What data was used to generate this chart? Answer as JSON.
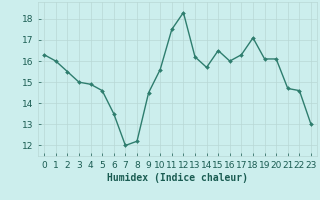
{
  "x": [
    0,
    1,
    2,
    3,
    4,
    5,
    6,
    7,
    8,
    9,
    10,
    11,
    12,
    13,
    14,
    15,
    16,
    17,
    18,
    19,
    20,
    21,
    22,
    23
  ],
  "y": [
    16.3,
    16.0,
    15.5,
    15.0,
    14.9,
    14.6,
    13.5,
    12.0,
    12.2,
    14.5,
    15.6,
    17.5,
    18.3,
    16.2,
    15.7,
    16.5,
    16.0,
    16.3,
    17.1,
    16.1,
    16.1,
    14.7,
    14.6,
    13.0
  ],
  "line_color": "#2e7d6e",
  "marker": "D",
  "marker_size": 2.0,
  "bg_color": "#cceeed",
  "grid_color": "#b8d8d5",
  "xlabel": "Humidex (Indice chaleur)",
  "xlabel_color": "#1a5c52",
  "tick_color": "#1a5c52",
  "ylim": [
    11.5,
    18.8
  ],
  "xlim": [
    -0.5,
    23.5
  ],
  "yticks": [
    12,
    13,
    14,
    15,
    16,
    17,
    18
  ],
  "xticks": [
    0,
    1,
    2,
    3,
    4,
    5,
    6,
    7,
    8,
    9,
    10,
    11,
    12,
    13,
    14,
    15,
    16,
    17,
    18,
    19,
    20,
    21,
    22,
    23
  ],
  "xtick_labels": [
    "0",
    "1",
    "2",
    "3",
    "4",
    "5",
    "6",
    "7",
    "8",
    "9",
    "10",
    "11",
    "12",
    "13",
    "14",
    "15",
    "16",
    "17",
    "18",
    "19",
    "20",
    "21",
    "22",
    "23"
  ],
  "line_width": 1.0,
  "font_size": 6.5
}
